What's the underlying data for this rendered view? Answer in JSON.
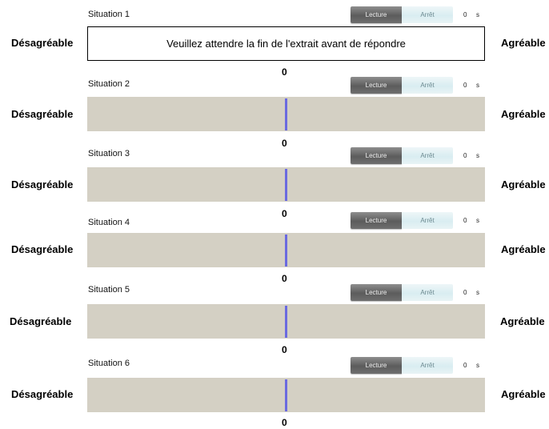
{
  "labels": {
    "left": "Désagréable",
    "right": "Agréable"
  },
  "buttons": {
    "play": "Lecture",
    "stop": "Arrêt"
  },
  "time_unit": "s",
  "waiting_message": "Veuillez attendre la fin de l'extrait avant de répondre",
  "situations": [
    {
      "title": "Situation 1",
      "time": "0",
      "value": "0",
      "state": "waiting"
    },
    {
      "title": "Situation 2",
      "time": "0",
      "value": "0",
      "state": "slider"
    },
    {
      "title": "Situation 3",
      "time": "0",
      "value": "0",
      "state": "slider"
    },
    {
      "title": "Situation 4",
      "time": "0",
      "value": "0",
      "state": "slider"
    },
    {
      "title": "Situation 5",
      "time": "0",
      "value": "0",
      "state": "slider"
    },
    {
      "title": "Situation 6",
      "time": "0",
      "value": "0",
      "state": "slider"
    }
  ],
  "colors": {
    "slider_track": "#d4d0c4",
    "slider_thumb": "#6a6ae0",
    "play_button": "#6f6f6f",
    "stop_button": "#d9edf1"
  }
}
